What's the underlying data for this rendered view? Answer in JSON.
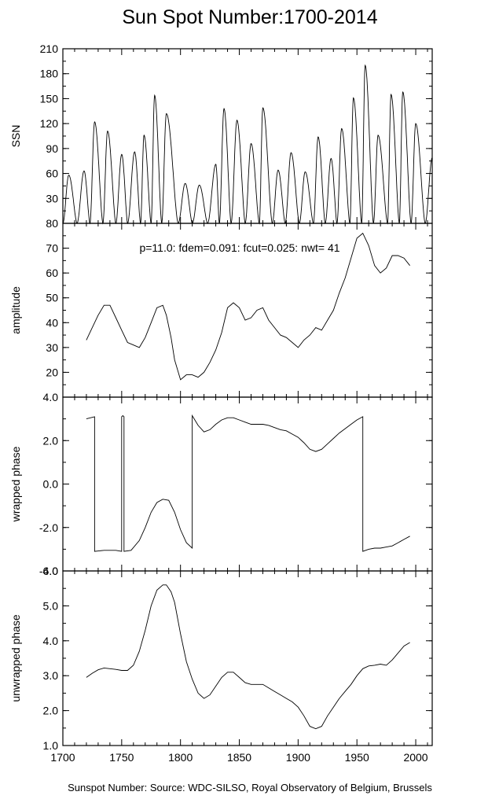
{
  "title": "Sun Spot Number:1700-2014",
  "footer": "Sunspot Number: Source: WDC-SILSO, Royal Observatory of Belgium, Brussels",
  "chart_data": [
    {
      "type": "line",
      "ylabel": "SSN",
      "xlim": [
        1700,
        2014
      ],
      "ylim": [
        0,
        210
      ],
      "yticks": [
        30,
        60,
        90,
        120,
        150,
        180,
        210
      ],
      "ytick_labels": [
        "30",
        "60",
        "90",
        "120",
        "150",
        "180",
        "210"
      ],
      "cycles": [
        {
          "min": 1700,
          "peak": 1705,
          "end": 1712,
          "value": 58
        },
        {
          "min": 1712,
          "peak": 1718,
          "end": 1723,
          "value": 63
        },
        {
          "min": 1723,
          "peak": 1727,
          "end": 1734,
          "value": 122
        },
        {
          "min": 1734,
          "peak": 1738,
          "end": 1745,
          "value": 111
        },
        {
          "min": 1745,
          "peak": 1750,
          "end": 1755,
          "value": 83
        },
        {
          "min": 1755,
          "peak": 1761,
          "end": 1766,
          "value": 86
        },
        {
          "min": 1766,
          "peak": 1769,
          "end": 1775,
          "value": 106
        },
        {
          "min": 1775,
          "peak": 1778,
          "end": 1784,
          "value": 154
        },
        {
          "min": 1784,
          "peak": 1788,
          "end": 1798,
          "value": 132
        },
        {
          "min": 1798,
          "peak": 1804,
          "end": 1810,
          "value": 48
        },
        {
          "min": 1810,
          "peak": 1816,
          "end": 1823,
          "value": 46
        },
        {
          "min": 1823,
          "peak": 1830,
          "end": 1833,
          "value": 71
        },
        {
          "min": 1833,
          "peak": 1837,
          "end": 1843,
          "value": 138
        },
        {
          "min": 1843,
          "peak": 1848,
          "end": 1855,
          "value": 124
        },
        {
          "min": 1855,
          "peak": 1860,
          "end": 1867,
          "value": 96
        },
        {
          "min": 1867,
          "peak": 1870,
          "end": 1878,
          "value": 139
        },
        {
          "min": 1878,
          "peak": 1883,
          "end": 1889,
          "value": 64
        },
        {
          "min": 1889,
          "peak": 1894,
          "end": 1901,
          "value": 85
        },
        {
          "min": 1901,
          "peak": 1906,
          "end": 1913,
          "value": 62
        },
        {
          "min": 1913,
          "peak": 1917,
          "end": 1923,
          "value": 104
        },
        {
          "min": 1923,
          "peak": 1928,
          "end": 1933,
          "value": 78
        },
        {
          "min": 1933,
          "peak": 1937,
          "end": 1944,
          "value": 114
        },
        {
          "min": 1944,
          "peak": 1947,
          "end": 1954,
          "value": 151
        },
        {
          "min": 1954,
          "peak": 1957,
          "end": 1964,
          "value": 190
        },
        {
          "min": 1964,
          "peak": 1968,
          "end": 1976,
          "value": 106
        },
        {
          "min": 1976,
          "peak": 1979,
          "end": 1986,
          "value": 155
        },
        {
          "min": 1986,
          "peak": 1989,
          "end": 1996,
          "value": 158
        },
        {
          "min": 1996,
          "peak": 2000,
          "end": 2008,
          "value": 120
        },
        {
          "min": 2008,
          "peak": 2014,
          "end": 2014,
          "value": 79
        }
      ]
    },
    {
      "type": "line",
      "ylabel": "amplitude",
      "annotation": "p=11.0: fdem=0.091: fcut=0.025: nwt= 41",
      "xlim": [
        1700,
        2014
      ],
      "ylim": [
        10,
        80
      ],
      "yticks": [
        20,
        30,
        40,
        50,
        60,
        70,
        80
      ],
      "ytick_labels": [
        "20",
        "30",
        "40",
        "50",
        "60",
        "70",
        "80"
      ],
      "x": [
        1720,
        1725,
        1730,
        1735,
        1740,
        1745,
        1750,
        1755,
        1760,
        1765,
        1770,
        1775,
        1780,
        1785,
        1788,
        1792,
        1795,
        1800,
        1805,
        1810,
        1815,
        1820,
        1825,
        1830,
        1835,
        1840,
        1845,
        1850,
        1855,
        1860,
        1865,
        1870,
        1875,
        1880,
        1885,
        1890,
        1895,
        1900,
        1905,
        1910,
        1915,
        1920,
        1925,
        1930,
        1935,
        1940,
        1945,
        1950,
        1955,
        1960,
        1965,
        1970,
        1975,
        1980,
        1985,
        1990,
        1995
      ],
      "y": [
        33,
        38,
        43,
        47,
        47,
        42,
        37,
        32,
        31,
        30,
        34,
        40,
        46,
        47,
        43,
        34,
        25,
        17,
        19,
        19,
        18,
        20,
        24,
        29,
        36,
        46,
        48,
        46,
        41,
        42,
        45,
        46,
        41,
        38,
        35,
        34,
        32,
        30,
        33,
        35,
        38,
        37,
        41,
        45,
        52,
        58,
        66,
        74,
        76,
        71,
        63,
        60,
        62,
        67,
        67,
        66,
        63
      ]
    },
    {
      "type": "line",
      "ylabel": "wrapped phase",
      "xlim": [
        1700,
        2014
      ],
      "ylim": [
        -4.0,
        4.0
      ],
      "yticks": [
        -4.0,
        -2.0,
        0.0,
        2.0,
        4.0
      ],
      "ytick_labels": [
        "-4.0",
        "-2.0",
        "0.0",
        "2.0",
        "4.0"
      ],
      "x": [
        1720,
        1727,
        1727,
        1735,
        1745,
        1750,
        1750,
        1751,
        1752,
        1752,
        1758,
        1765,
        1770,
        1775,
        1780,
        1785,
        1790,
        1795,
        1800,
        1805,
        1810,
        1810,
        1815,
        1820,
        1825,
        1830,
        1835,
        1840,
        1845,
        1850,
        1855,
        1860,
        1865,
        1870,
        1875,
        1880,
        1885,
        1890,
        1895,
        1900,
        1905,
        1910,
        1915,
        1920,
        1925,
        1930,
        1935,
        1940,
        1945,
        1950,
        1955,
        1955,
        1960,
        1965,
        1970,
        1975,
        1980,
        1985,
        1990,
        1995
      ],
      "y": [
        3.0,
        3.1,
        -3.1,
        -3.05,
        -3.05,
        -3.1,
        3.1,
        3.15,
        3.1,
        -3.1,
        -3.05,
        -2.6,
        -2.0,
        -1.3,
        -0.85,
        -0.7,
        -0.75,
        -1.3,
        -2.1,
        -2.7,
        -2.95,
        3.15,
        2.7,
        2.4,
        2.5,
        2.75,
        2.95,
        3.05,
        3.05,
        2.95,
        2.85,
        2.75,
        2.75,
        2.75,
        2.7,
        2.6,
        2.5,
        2.45,
        2.3,
        2.15,
        1.9,
        1.6,
        1.5,
        1.6,
        1.85,
        2.1,
        2.35,
        2.55,
        2.75,
        2.95,
        3.1,
        -3.1,
        -3.0,
        -2.95,
        -2.95,
        -2.9,
        -2.85,
        -2.7,
        -2.55,
        -2.4
      ]
    },
    {
      "type": "line",
      "ylabel": "unwrapped phase",
      "xlim": [
        1700,
        2014
      ],
      "ylim": [
        1.0,
        6.0
      ],
      "yticks": [
        1.0,
        2.0,
        3.0,
        4.0,
        5.0,
        6.0
      ],
      "ytick_labels": [
        "1.0",
        "2.0",
        "3.0",
        "4.0",
        "5.0",
        "6.0"
      ],
      "xticks": [
        1700,
        1750,
        1800,
        1850,
        1900,
        1950,
        2000
      ],
      "xtick_labels": [
        "1700",
        "1750",
        "1800",
        "1850",
        "1900",
        "1950",
        "2000"
      ],
      "x": [
        1720,
        1725,
        1730,
        1735,
        1740,
        1745,
        1750,
        1755,
        1760,
        1765,
        1770,
        1775,
        1780,
        1785,
        1788,
        1792,
        1795,
        1800,
        1805,
        1810,
        1815,
        1820,
        1825,
        1830,
        1835,
        1840,
        1845,
        1850,
        1855,
        1860,
        1865,
        1870,
        1875,
        1880,
        1885,
        1890,
        1895,
        1900,
        1905,
        1910,
        1915,
        1920,
        1925,
        1930,
        1935,
        1940,
        1945,
        1950,
        1955,
        1960,
        1965,
        1970,
        1975,
        1980,
        1985,
        1990,
        1995
      ],
      "y": [
        2.95,
        3.07,
        3.17,
        3.22,
        3.2,
        3.18,
        3.15,
        3.15,
        3.3,
        3.7,
        4.3,
        5.0,
        5.45,
        5.6,
        5.6,
        5.4,
        5.1,
        4.2,
        3.4,
        2.9,
        2.5,
        2.35,
        2.45,
        2.7,
        2.95,
        3.1,
        3.1,
        2.95,
        2.8,
        2.75,
        2.75,
        2.75,
        2.65,
        2.55,
        2.45,
        2.35,
        2.25,
        2.1,
        1.85,
        1.55,
        1.48,
        1.55,
        1.85,
        2.1,
        2.35,
        2.55,
        2.75,
        3.0,
        3.2,
        3.28,
        3.3,
        3.33,
        3.3,
        3.45,
        3.65,
        3.85,
        3.95
      ]
    }
  ]
}
